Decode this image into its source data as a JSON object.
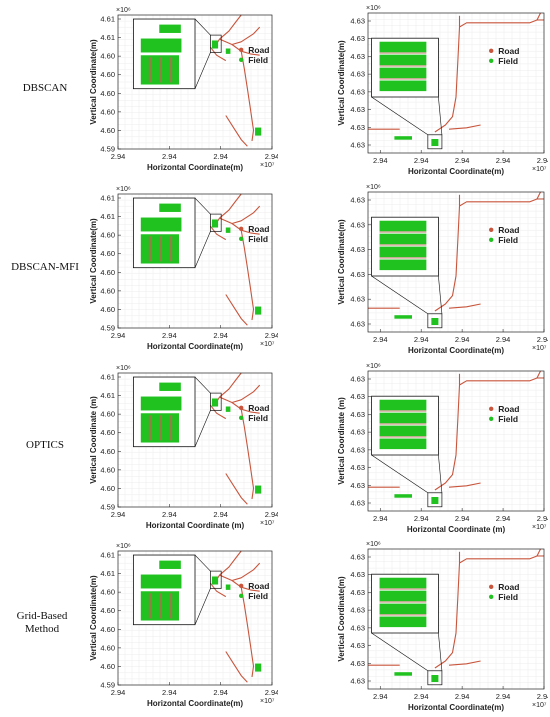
{
  "rows": [
    {
      "label": "DBSCAN"
    },
    {
      "label": "DBSCAN-MFI"
    },
    {
      "label": "OPTICS"
    },
    {
      "label": "Grid-Based Method"
    }
  ],
  "legend": {
    "road": "Road",
    "field": "Field"
  },
  "colors": {
    "road": "#c8553c",
    "field": "#1fc21f",
    "zoom_field_dark": "#1a9e1a",
    "zoom_stripe": "#b56a55",
    "grid": "#ececec"
  },
  "chart_data": [
    {
      "type": "scatter",
      "row": "DBSCAN",
      "panel": "left",
      "xlabel": "Horizontal Coordinate(m)",
      "ylabel": "Vertical Coordinate(m)",
      "x_multiplier": "×10⁷",
      "y_multiplier": "×10⁶",
      "xticks": [
        "2.94",
        "2.94",
        "2.94",
        "2.94"
      ],
      "yticks": [
        "4.61",
        "4.61",
        "4.60",
        "4.60",
        "4.60",
        "4.60",
        "4.60",
        "4.59"
      ],
      "series": [
        {
          "name": "Road"
        },
        {
          "name": "Field"
        }
      ],
      "grid": true,
      "legend_position": "right"
    },
    {
      "type": "scatter",
      "row": "DBSCAN",
      "panel": "right",
      "xlabel": "Horizontal Coordinate(m)",
      "ylabel": "Vertical Coordinate(m)",
      "x_multiplier": "×10⁷",
      "y_multiplier": "×10⁶",
      "xticks": [
        "2.94",
        "2.94",
        "2.94",
        "2.94",
        "2.94"
      ],
      "yticks": [
        "4.63",
        "4.63",
        "4.63",
        "4.63",
        "4.63",
        "4.63",
        "4.63",
        "4.63"
      ],
      "series": [
        {
          "name": "Road"
        },
        {
          "name": "Field"
        }
      ],
      "grid": true,
      "legend_position": "right"
    },
    {
      "type": "scatter",
      "row": "DBSCAN-MFI",
      "panel": "left",
      "xlabel": "Horizontal Coordinate(m)",
      "ylabel": "Vertical Coordinate(m)",
      "x_multiplier": "×10⁷",
      "y_multiplier": "×10⁶",
      "xticks": [
        "2.94",
        "2.94",
        "2.94",
        "2.94"
      ],
      "yticks": [
        "4.61",
        "4.61",
        "4.60",
        "4.60",
        "4.60",
        "4.60",
        "4.60",
        "4.59"
      ],
      "series": [
        {
          "name": "Road"
        },
        {
          "name": "Field"
        }
      ],
      "grid": true,
      "legend_position": "right"
    },
    {
      "type": "scatter",
      "row": "DBSCAN-MFI",
      "panel": "right",
      "xlabel": "Horizontal Coordinate(m)",
      "ylabel": "Vertical Coordinate(m)",
      "x_multiplier": "×10⁷",
      "y_multiplier": "×10⁶",
      "xticks": [
        "2.94",
        "2.94",
        "2.94",
        "2.94",
        "2.94"
      ],
      "yticks": [
        "4.63",
        "4.63",
        "4.63",
        "4.63",
        "4.63",
        "4.63"
      ],
      "series": [
        {
          "name": "Road"
        },
        {
          "name": "Field"
        }
      ],
      "grid": true,
      "legend_position": "right"
    },
    {
      "type": "scatter",
      "row": "OPTICS",
      "panel": "left",
      "xlabel": "Horizontal Coordinate (m)",
      "ylabel": "Vertical Coordinate (m)",
      "x_multiplier": "×10⁷",
      "y_multiplier": "×10⁶",
      "xticks": [
        "2.94",
        "2.94",
        "2.94",
        "2.94"
      ],
      "yticks": [
        "4.61",
        "4.61",
        "4.60",
        "4.60",
        "4.60",
        "4.60",
        "4.60",
        "4.59"
      ],
      "series": [
        {
          "name": "Road"
        },
        {
          "name": "Field"
        }
      ],
      "grid": true,
      "legend_position": "right"
    },
    {
      "type": "scatter",
      "row": "OPTICS",
      "panel": "right",
      "xlabel": "Horizontal Coordinate (m)",
      "ylabel": "Vertical Coordinate (m)",
      "x_multiplier": "×10⁷",
      "y_multiplier": "×10⁶",
      "xticks": [
        "2.94",
        "2.94",
        "2.94",
        "2.94",
        "2.94"
      ],
      "yticks": [
        "4.63",
        "4.63",
        "4.63",
        "4.63",
        "4.63",
        "4.63",
        "4.63",
        "4.63"
      ],
      "series": [
        {
          "name": "Road"
        },
        {
          "name": "Field"
        }
      ],
      "grid": true,
      "legend_position": "right"
    },
    {
      "type": "scatter",
      "row": "Grid-Based Method",
      "panel": "left",
      "xlabel": "Horizontal Coordinate(m)",
      "ylabel": "Vertical Coordinate(m)",
      "x_multiplier": "×10⁷",
      "y_multiplier": "×10⁶",
      "xticks": [
        "2.94",
        "2.94",
        "2.94",
        "2.94"
      ],
      "yticks": [
        "4.61",
        "4.61",
        "4.60",
        "4.60",
        "4.60",
        "4.60",
        "4.60",
        "4.59"
      ],
      "series": [
        {
          "name": "Road"
        },
        {
          "name": "Field"
        }
      ],
      "grid": true,
      "legend_position": "right"
    },
    {
      "type": "scatter",
      "row": "Grid-Based Method",
      "panel": "right",
      "xlabel": "Horizontal Coordinate(m)",
      "ylabel": "Vertical Coordinate(m)",
      "x_multiplier": "×10⁷",
      "y_multiplier": "×10⁶",
      "xticks": [
        "2.94",
        "2.94",
        "2.94",
        "2.94",
        "2.94"
      ],
      "yticks": [
        "4.63",
        "4.63",
        "4.63",
        "4.63",
        "4.63",
        "4.63",
        "4.63",
        "4.63"
      ],
      "series": [
        {
          "name": "Road"
        },
        {
          "name": "Field"
        }
      ],
      "grid": true,
      "legend_position": "right"
    }
  ]
}
